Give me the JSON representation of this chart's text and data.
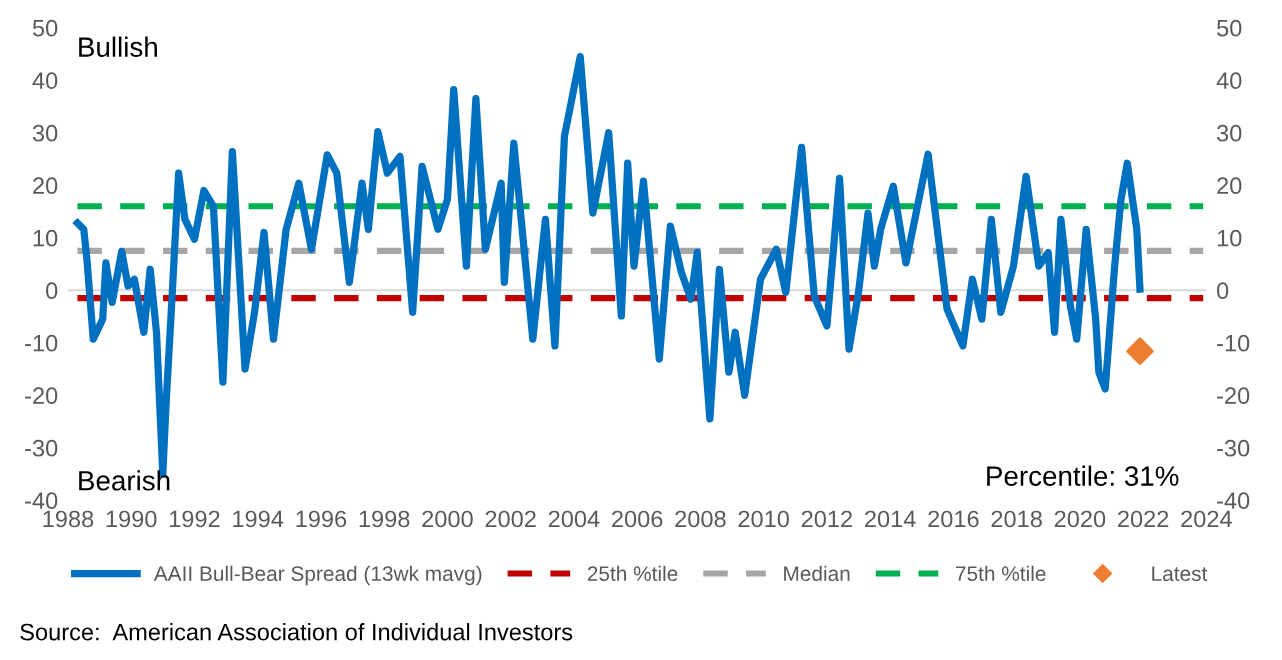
{
  "chart_data": {
    "type": "line",
    "series": [
      {
        "name": "AAII Bull-Bear Spread (13wk mavg)",
        "color": "#0070c0",
        "line_style": "solid",
        "x": [
          1988.3,
          1988.5,
          1988.6,
          1988.8,
          1989.1,
          1989.2,
          1989.4,
          1989.7,
          1989.9,
          1990.1,
          1990.4,
          1990.6,
          1990.8,
          1991.0,
          1991.1,
          1991.3,
          1991.5,
          1991.7,
          1992.0,
          1992.3,
          1992.6,
          1992.9,
          1993.2,
          1993.6,
          1993.9,
          1994.2,
          1994.5,
          1994.9,
          1995.3,
          1995.7,
          1996.2,
          1996.5,
          1996.9,
          1997.3,
          1997.5,
          1997.8,
          1998.1,
          1998.5,
          1998.9,
          1999.2,
          1999.7,
          2000.0,
          2000.2,
          2000.6,
          2000.9,
          2001.2,
          2001.7,
          2001.8,
          2002.1,
          2002.7,
          2003.1,
          2003.4,
          2003.7,
          2004.2,
          2004.6,
          2005.1,
          2005.5,
          2005.7,
          2005.9,
          2006.2,
          2006.7,
          2007.05,
          2007.4,
          2007.7,
          2007.9,
          2008.3,
          2008.6,
          2008.9,
          2009.1,
          2009.4,
          2009.9,
          2010.4,
          2010.7,
          2011.2,
          2011.6,
          2012.0,
          2012.4,
          2012.7,
          2013.0,
          2013.3,
          2013.5,
          2013.7,
          2014.1,
          2014.5,
          2015.2,
          2015.8,
          2016.3,
          2016.6,
          2016.9,
          2017.2,
          2017.5,
          2017.9,
          2018.3,
          2018.7,
          2019.0,
          2019.2,
          2019.4,
          2019.7,
          2019.9,
          2020.2,
          2020.5,
          2020.6,
          2020.8,
          2021.1,
          2021.3,
          2021.5,
          2021.8,
          2021.9
        ],
        "values": [
          12.8,
          11.6,
          5.9,
          -9.3,
          -5.5,
          5.2,
          -2.3,
          7.4,
          0.8,
          2.1,
          -8,
          4,
          -8,
          -35,
          -22,
          -0.4,
          22.3,
          13.5,
          9.7,
          19,
          16,
          -17.5,
          26.4,
          -15,
          -4.2,
          11,
          -9.3,
          11.6,
          20.4,
          7.8,
          25.8,
          22.3,
          1.5,
          20.4,
          11.6,
          30.2,
          22.3,
          25.5,
          -4.2,
          23.6,
          11.6,
          17.3,
          38.2,
          4.6,
          36.5,
          7.8,
          20.4,
          1.5,
          28,
          -9.3,
          13.5,
          -10.6,
          29.3,
          44.5,
          14.7,
          30,
          -4.9,
          24.2,
          4.6,
          20.8,
          -13.1,
          12.2,
          3.4,
          -1.7,
          7.2,
          -24.5,
          4,
          -15.6,
          -8,
          -20,
          2.1,
          7.8,
          -0.4,
          27.2,
          -1.1,
          -6.8,
          21.3,
          -11.2,
          -0.4,
          14.7,
          4.6,
          11.6,
          19.8,
          5.2,
          25.9,
          -3.6,
          -10.6,
          2.1,
          -5.5,
          13.5,
          -4.2,
          4.6,
          21.7,
          4.6,
          7.2,
          -8,
          13.5,
          -3,
          -9.3,
          11.6,
          -5.5,
          -15.6,
          -18.8,
          4.6,
          17.3,
          24.2,
          11.6,
          0.2
        ]
      },
      {
        "name": "25th %tile",
        "color": "#c00000",
        "line_style": "dashed",
        "x": [
          1988.3,
          2023.9
        ],
        "values": [
          -1.5,
          -1.5
        ]
      },
      {
        "name": "Median",
        "color": "#a6a6a6",
        "line_style": "dashed",
        "x": [
          1988.3,
          2023.9
        ],
        "values": [
          7.5,
          7.5
        ]
      },
      {
        "name": "75th %tile",
        "color": "#00b050",
        "line_style": "dashed",
        "x": [
          1988.3,
          2023.9
        ],
        "values": [
          16,
          16
        ]
      },
      {
        "name": "Latest",
        "type": "scatter",
        "marker": "diamond",
        "color": "#ed7d31",
        "x": [
          2021.9
        ],
        "values": [
          -11.6
        ]
      }
    ],
    "xlim": [
      1988,
      2024
    ],
    "xticks": [
      1988,
      1990,
      1992,
      1994,
      1996,
      1998,
      2000,
      2002,
      2004,
      2006,
      2008,
      2010,
      2012,
      2014,
      2016,
      2018,
      2020,
      2022,
      2024
    ],
    "ylim": [
      -40,
      50
    ],
    "yticks": [
      -40,
      -30,
      -20,
      -10,
      0,
      10,
      20,
      30,
      40,
      50
    ],
    "y2lim": [
      -40,
      50
    ],
    "y2ticks": [
      -40,
      -30,
      -20,
      -10,
      0,
      10,
      20,
      30,
      40,
      50
    ],
    "ref_lines": [
      {
        "axis": "y",
        "value": 0,
        "color": "#d9d9d9"
      }
    ],
    "grid": false,
    "legend": "bottom",
    "annotations": [
      "Bullish",
      "Bearish",
      "Percentile: 31%",
      "Source:  American Association of Individual Investors"
    ]
  }
}
